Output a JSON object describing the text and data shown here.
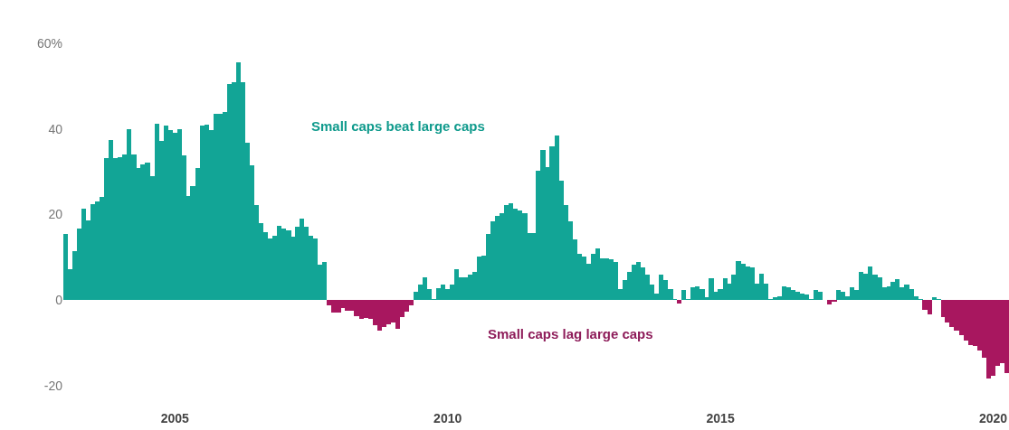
{
  "chart_data": {
    "type": "bar",
    "annotations": [
      "Small caps beat large caps",
      "Small caps lag large caps"
    ],
    "x": [
      "2003-01",
      "2003-02",
      "2003-03",
      "2003-04",
      "2003-05",
      "2003-06",
      "2003-07",
      "2003-08",
      "2003-09",
      "2003-10",
      "2003-11",
      "2003-12",
      "2004-01",
      "2004-02",
      "2004-03",
      "2004-04",
      "2004-05",
      "2004-06",
      "2004-07",
      "2004-08",
      "2004-09",
      "2004-10",
      "2004-11",
      "2004-12",
      "2005-01",
      "2005-02",
      "2005-03",
      "2005-04",
      "2005-05",
      "2005-06",
      "2005-07",
      "2005-08",
      "2005-09",
      "2005-10",
      "2005-11",
      "2005-12",
      "2006-01",
      "2006-02",
      "2006-03",
      "2006-04",
      "2006-05",
      "2006-06",
      "2006-07",
      "2006-08",
      "2006-09",
      "2006-10",
      "2006-11",
      "2006-12",
      "2007-01",
      "2007-02",
      "2007-03",
      "2007-04",
      "2007-05",
      "2007-06",
      "2007-07",
      "2007-08",
      "2007-09",
      "2007-10",
      "2007-11",
      "2007-12",
      "2008-01",
      "2008-02",
      "2008-03",
      "2008-04",
      "2008-05",
      "2008-06",
      "2008-07",
      "2008-08",
      "2008-09",
      "2008-10",
      "2008-11",
      "2008-12",
      "2009-01",
      "2009-02",
      "2009-03",
      "2009-04",
      "2009-05",
      "2009-06",
      "2009-07",
      "2009-08",
      "2009-09",
      "2009-10",
      "2009-11",
      "2009-12",
      "2010-01",
      "2010-02",
      "2010-03",
      "2010-04",
      "2010-05",
      "2010-06",
      "2010-07",
      "2010-08",
      "2010-09",
      "2010-10",
      "2010-11",
      "2010-12",
      "2011-01",
      "2011-02",
      "2011-03",
      "2011-04",
      "2011-05",
      "2011-06",
      "2011-07",
      "2011-08",
      "2011-09",
      "2011-10",
      "2011-11",
      "2011-12",
      "2012-01",
      "2012-02",
      "2012-03",
      "2012-04",
      "2012-05",
      "2012-06",
      "2012-07",
      "2012-08",
      "2012-09",
      "2012-10",
      "2012-11",
      "2012-12",
      "2013-01",
      "2013-02",
      "2013-03",
      "2013-04",
      "2013-05",
      "2013-06",
      "2013-07",
      "2013-08",
      "2013-09",
      "2013-10",
      "2013-11",
      "2013-12",
      "2014-01",
      "2014-02",
      "2014-03",
      "2014-04",
      "2014-05",
      "2014-06",
      "2014-07",
      "2014-08",
      "2014-09",
      "2014-10",
      "2014-11",
      "2014-12",
      "2015-01",
      "2015-02",
      "2015-03",
      "2015-04",
      "2015-05",
      "2015-06",
      "2015-07",
      "2015-08",
      "2015-09",
      "2015-10",
      "2015-11",
      "2015-12",
      "2016-01",
      "2016-02",
      "2016-03",
      "2016-04",
      "2016-05",
      "2016-06",
      "2016-07",
      "2016-08",
      "2016-09",
      "2016-10",
      "2016-11",
      "2016-12",
      "2017-01",
      "2017-02",
      "2017-03",
      "2017-04",
      "2017-05",
      "2017-06",
      "2017-07",
      "2017-08",
      "2017-09",
      "2017-10",
      "2017-11",
      "2017-12",
      "2018-01",
      "2018-02",
      "2018-03",
      "2018-04",
      "2018-05",
      "2018-06",
      "2018-07",
      "2018-08",
      "2018-09",
      "2018-10",
      "2018-11",
      "2018-12",
      "2019-01",
      "2019-02",
      "2019-03",
      "2019-04",
      "2019-05",
      "2019-06",
      "2019-07",
      "2019-08",
      "2019-09",
      "2019-10",
      "2019-11",
      "2019-12",
      "2020-01",
      "2020-02",
      "2020-03",
      "2020-04"
    ],
    "values": [
      15.4,
      7.2,
      11.5,
      16.7,
      21.3,
      18.7,
      22.4,
      23,
      24.2,
      33.1,
      37.4,
      33.1,
      33.4,
      34.1,
      40,
      34.1,
      30.8,
      31.8,
      32.2,
      29,
      41.3,
      37.1,
      40.7,
      39.7,
      39,
      40,
      33.8,
      24.3,
      26.6,
      30.8,
      40.7,
      41,
      39.7,
      43.6,
      43.6,
      44,
      50.5,
      50.9,
      55.5,
      50.9,
      36.8,
      31.5,
      22.3,
      18,
      15.8,
      14.5,
      15.1,
      17.4,
      16.8,
      16.4,
      14.8,
      17.1,
      19.1,
      17.1,
      15.1,
      14.5,
      8.2,
      8.9,
      -1.3,
      -2.9,
      -2.9,
      -1.9,
      -2.5,
      -2.5,
      -3.8,
      -4.4,
      -4.2,
      -4.3,
      -5.9,
      -7.2,
      -6.2,
      -5.6,
      -5.3,
      -6.6,
      -4,
      -2.6,
      -1.3,
      2,
      3.6,
      5.4,
      2.6,
      0.3,
      2.9,
      3.6,
      2.6,
      3.6,
      7.2,
      5.4,
      5.3,
      5.9,
      6.5,
      10.2,
      10.5,
      15.4,
      18.4,
      19.7,
      20.4,
      22.3,
      22.6,
      21.3,
      21,
      20.4,
      15.7,
      15.7,
      30.2,
      35,
      31,
      36,
      38.5,
      28,
      22.3,
      18.4,
      14.1,
      10.8,
      10.2,
      8.5,
      10.8,
      12.1,
      9.8,
      9.7,
      9.5,
      8.9,
      2.6,
      4.6,
      6.6,
      8.2,
      8.9,
      7.6,
      5.9,
      3.6,
      1.6,
      5.9,
      4.6,
      2.6,
      0.3,
      -0.7,
      2.3,
      0.3,
      3,
      3.3,
      2.6,
      0.6,
      5.2,
      2,
      2.6,
      5.2,
      3.9,
      5.9,
      9.2,
      8.5,
      7.8,
      7.6,
      3.9,
      6.2,
      3.9,
      0.3,
      0.6,
      0.9,
      3.3,
      3,
      2.3,
      2,
      1.6,
      1.3,
      0.3,
      2.3,
      2,
      0,
      -1,
      -0.3,
      2.3,
      2,
      0.9,
      3,
      2.3,
      6.6,
      6.2,
      7.9,
      5.9,
      5.3,
      3,
      3.3,
      4.3,
      5,
      3,
      3.6,
      2.6,
      1,
      0.2,
      -2.3,
      -3.3,
      0.7,
      0.3,
      -3.9,
      -5.2,
      -6.2,
      -7.2,
      -8.2,
      -9.5,
      -10.5,
      -10.8,
      -11.8,
      -13.4,
      -18.4,
      -17.7,
      -15.4,
      -14.8,
      -17.1
    ],
    "colors": [
      "#12a596",
      "#12a596",
      "#12a596",
      "#12a596",
      "#12a596",
      "#12a596",
      "#12a596",
      "#12a596",
      "#12a596",
      "#12a596",
      "#12a596",
      "#12a596",
      "#12a596",
      "#12a596",
      "#12a596",
      "#12a596",
      "#12a596",
      "#12a596",
      "#12a596",
      "#12a596",
      "#12a596",
      "#12a596",
      "#12a596",
      "#12a596",
      "#12a596",
      "#12a596",
      "#12a596",
      "#12a596",
      "#12a596",
      "#12a596",
      "#12a596",
      "#12a596",
      "#12a596",
      "#12a596",
      "#12a596",
      "#12a596",
      "#12a596",
      "#12a596",
      "#12a596",
      "#12a596",
      "#12a596",
      "#12a596",
      "#12a596",
      "#12a596",
      "#12a596",
      "#12a596",
      "#12a596",
      "#12a596",
      "#12a596",
      "#12a596",
      "#12a596",
      "#12a596",
      "#12a596",
      "#12a596",
      "#12a596",
      "#12a596",
      "#12a596",
      "#12a596",
      "#a8175f",
      "#a8175f",
      "#a8175f",
      "#a8175f",
      "#a8175f",
      "#a8175f",
      "#a8175f",
      "#a8175f",
      "#a8175f",
      "#a8175f",
      "#a8175f",
      "#a8175f",
      "#a8175f",
      "#a8175f",
      "#a8175f",
      "#a8175f",
      "#a8175f",
      "#a8175f",
      "#a8175f",
      "#12a596",
      "#12a596",
      "#12a596",
      "#12a596",
      "#12a596",
      "#12a596",
      "#12a596",
      "#12a596",
      "#12a596",
      "#12a596",
      "#12a596",
      "#12a596",
      "#12a596",
      "#12a596",
      "#12a596",
      "#12a596",
      "#12a596",
      "#12a596",
      "#12a596",
      "#12a596",
      "#12a596",
      "#12a596",
      "#12a596",
      "#12a596",
      "#12a596",
      "#12a596",
      "#12a596",
      "#12a596",
      "#12a596",
      "#12a596",
      "#12a596",
      "#12a596",
      "#12a596",
      "#12a596",
      "#12a596",
      "#12a596",
      "#12a596",
      "#12a596",
      "#12a596",
      "#12a596",
      "#12a596",
      "#12a596",
      "#12a596",
      "#12a596",
      "#12a596",
      "#12a596",
      "#12a596",
      "#12a596",
      "#12a596",
      "#12a596",
      "#12a596",
      "#12a596",
      "#12a596",
      "#12a596",
      "#12a596",
      "#12a596",
      "#12a596",
      "#12a596",
      "#a8175f",
      "#12a596",
      "#12a596",
      "#12a596",
      "#12a596",
      "#12a596",
      "#12a596",
      "#12a596",
      "#12a596",
      "#12a596",
      "#12a596",
      "#12a596",
      "#12a596",
      "#12a596",
      "#12a596",
      "#12a596",
      "#12a596",
      "#12a596",
      "#12a596",
      "#12a596",
      "#12a596",
      "#12a596",
      "#12a596",
      "#12a596",
      "#12a596",
      "#12a596",
      "#12a596",
      "#12a596",
      "#12a596",
      "#12a596",
      "#12a596",
      "#12a596",
      "#12a596",
      "#a8175f",
      "#a8175f",
      "#12a596",
      "#12a596",
      "#12a596",
      "#12a596",
      "#12a596",
      "#12a596",
      "#12a596",
      "#12a596",
      "#12a596",
      "#12a596",
      "#12a596",
      "#12a596",
      "#12a596",
      "#12a596",
      "#12a596",
      "#12a596",
      "#12a596",
      "#12a596",
      "#12a596",
      "#a8175f",
      "#a8175f",
      "#12a596",
      "#12a596",
      "#a8175f",
      "#a8175f",
      "#a8175f",
      "#a8175f",
      "#a8175f",
      "#a8175f",
      "#a8175f",
      "#a8175f",
      "#a8175f",
      "#a8175f",
      "#a8175f",
      "#a8175f",
      "#a8175f",
      "#a8175f",
      "#a8175f"
    ],
    "xlim": [
      "2002-12-16",
      "2020-04-16"
    ],
    "xticks": [
      {
        "value": "2005-01-01",
        "label": "2005"
      },
      {
        "value": "2010-01-01",
        "label": "2010"
      },
      {
        "value": "2015-01-01",
        "label": "2015"
      },
      {
        "value": "2020-01-01",
        "label": "2020"
      }
    ],
    "ylim": [
      -20,
      60
    ],
    "yticks": [
      {
        "value": 60,
        "label": "60%"
      },
      40,
      20,
      0,
      -20
    ]
  }
}
